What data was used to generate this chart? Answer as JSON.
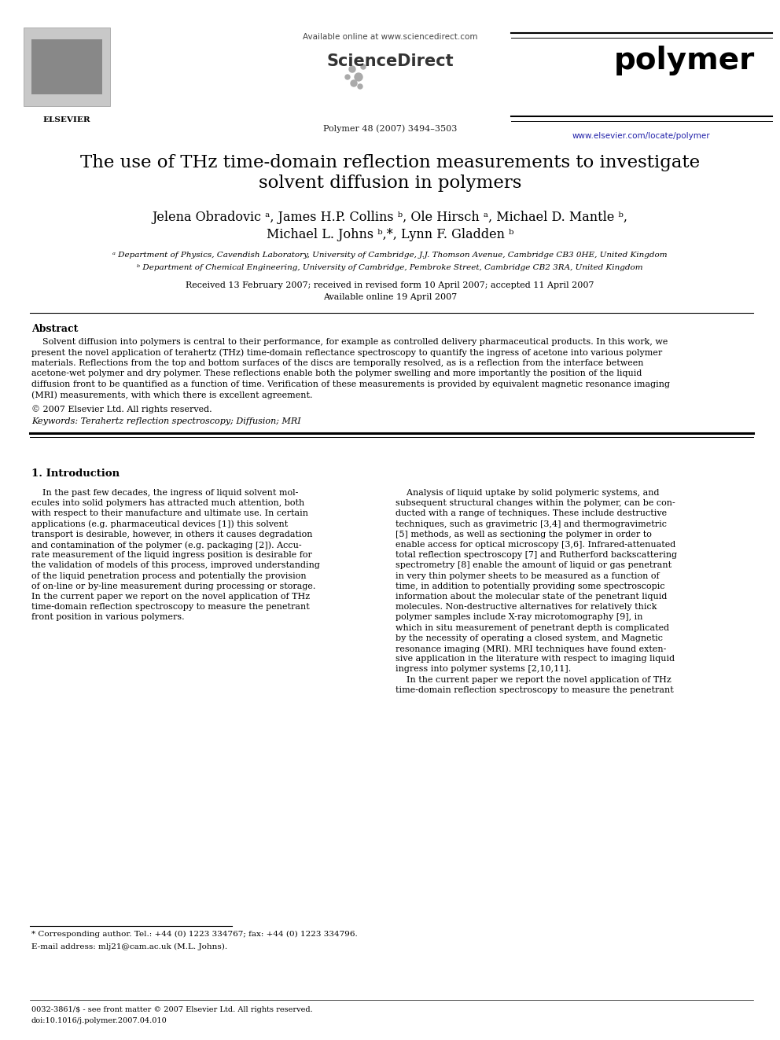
{
  "title_line1": "The use of THz time-domain reflection measurements to investigate",
  "title_line2": "solvent diffusion in polymers",
  "affil_a": "ᵃ Department of Physics, Cavendish Laboratory, University of Cambridge, J.J. Thomson Avenue, Cambridge CB3 0HE, United Kingdom",
  "affil_b": "ᵇ Department of Chemical Engineering, University of Cambridge, Pembroke Street, Cambridge CB2 3RA, United Kingdom",
  "received": "Received 13 February 2007; received in revised form 10 April 2007; accepted 11 April 2007",
  "available": "Available online 19 April 2007",
  "journal_info": "Polymer 48 (2007) 3494–3503",
  "available_online": "Available online at www.sciencedirect.com",
  "sd_text": "ScienceDirect",
  "journal_name": "polymer",
  "journal_url": "www.elsevier.com/locate/polymer",
  "abstract_title": "Abstract",
  "copyright": "© 2007 Elsevier Ltd. All rights reserved.",
  "keywords": "Keywords: Terahertz reflection spectroscopy; Diffusion; MRI",
  "section1_title": "1. Introduction",
  "footnote_star": "* Corresponding author. Tel.: +44 (0) 1223 334767; fax: +44 (0) 1223 334796.",
  "footnote_email": "E-mail address: mlj21@cam.ac.uk (M.L. Johns).",
  "footer_left": "0032-3861/$ - see front matter © 2007 Elsevier Ltd. All rights reserved.",
  "footer_doi": "doi:10.1016/j.polymer.2007.04.010",
  "bg_color": "#ffffff",
  "text_color": "#000000",
  "link_color": "#2222aa"
}
